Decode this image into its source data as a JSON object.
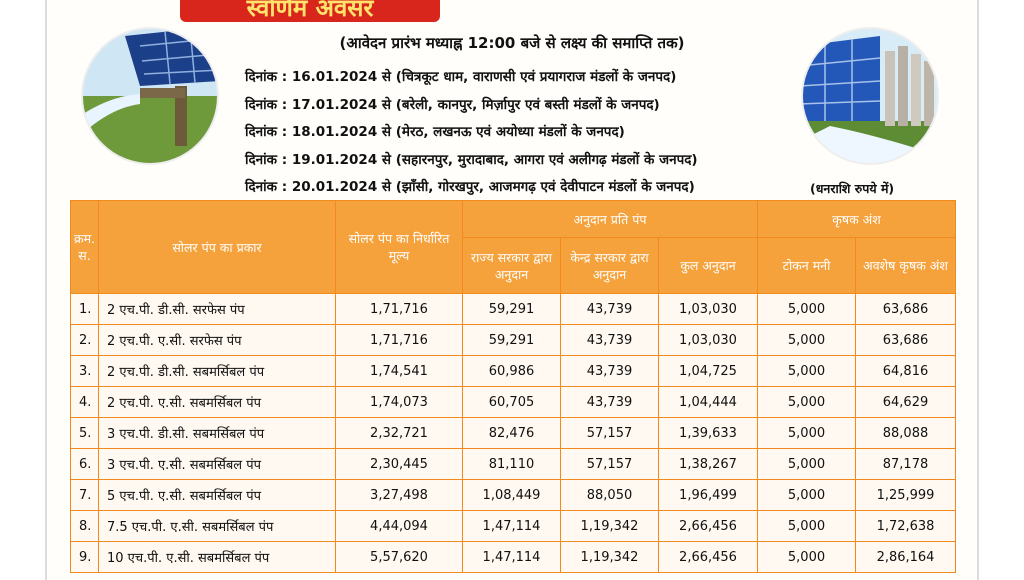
{
  "header": {
    "title": "स्वर्णिम अवसर",
    "subtitle": "(आवेदन प्रारंभ मध्याह्न 12:00 बजे से लक्ष्य की समाप्ति तक)",
    "dates": [
      "दिनांक : 16.01.2024 से (चित्रकूट धाम, वाराणसी एवं प्रयागराज मंडलों के जनपद)",
      "दिनांक : 17.01.2024 से (बरेली, कानपुर, मिर्ज़ापुर एवं बस्ती मंडलों के जनपद)",
      "दिनांक : 18.01.2024 से (मेरठ, लखनऊ एवं अयोध्या मंडलों के जनपद)",
      "दिनांक : 19.01.2024 से (सहारनपुर, मुरादाबाद, आगरा एवं अलीगढ़ मंडलों के जनपद)",
      "दिनांक : 20.01.2024 से (झाँसी, गोरखपुर, आजमगढ़ एवं देवीपाटन मंडलों के जनपद)"
    ],
    "note": "(धनराशि रुपये में)"
  },
  "table": {
    "group_headers": [
      "अनुदान प्रति पंप",
      "कृषक अंश"
    ],
    "headers": [
      "क्रम. स.",
      "सोलर पंप का प्रकार",
      "सोलर पंप का निर्धारित मूल्य",
      "राज्य सरकार द्वारा अनुदान",
      "केन्द्र सरकार द्वारा अनुदान",
      "कुल अनुदान",
      "टोकन मनी",
      "अवशेष कृषक अंश"
    ],
    "rows": [
      [
        "1.",
        "2 एच.पी. डी.सी. सरफेस पंप",
        "1,71,716",
        "59,291",
        "43,739",
        "1,03,030",
        "5,000",
        "63,686"
      ],
      [
        "2.",
        "2 एच.पी. ए.सी. सरफेस पंप",
        "1,71,716",
        "59,291",
        "43,739",
        "1,03,030",
        "5,000",
        "63,686"
      ],
      [
        "3.",
        "2 एच.पी. डी.सी. सबमर्सिबल पंप",
        "1,74,541",
        "60,986",
        "43,739",
        "1,04,725",
        "5,000",
        "64,816"
      ],
      [
        "4.",
        "2 एच.पी. ए.सी. सबमर्सिबल पंप",
        "1,74,073",
        "60,705",
        "43,739",
        "1,04,444",
        "5,000",
        "64,629"
      ],
      [
        "5.",
        "3 एच.पी. डी.सी. सबमर्सिबल पंप",
        "2,32,721",
        "82,476",
        "57,157",
        "1,39,633",
        "5,000",
        "88,088"
      ],
      [
        "6.",
        "3 एच.पी. ए.सी. सबमर्सिबल पंप",
        "2,30,445",
        "81,110",
        "57,157",
        "1,38,267",
        "5,000",
        "87,178"
      ],
      [
        "7.",
        "5 एच.पी. ए.सी. सबमर्सिबल पंप",
        "3,27,498",
        "1,08,449",
        "88,050",
        "1,96,499",
        "5,000",
        "1,25,999"
      ],
      [
        "8.",
        "7.5 एच.पी. ए.सी. सबमर्सिबल पंप",
        "4,44,094",
        "1,47,114",
        "1,19,342",
        "2,66,456",
        "5,000",
        "1,72,638"
      ],
      [
        "9.",
        "10 एच.पी. ए.सी. सबमर्सिबल पंप",
        "5,57,620",
        "1,47,114",
        "1,19,342",
        "2,66,456",
        "5,000",
        "2,86,164"
      ]
    ]
  }
}
